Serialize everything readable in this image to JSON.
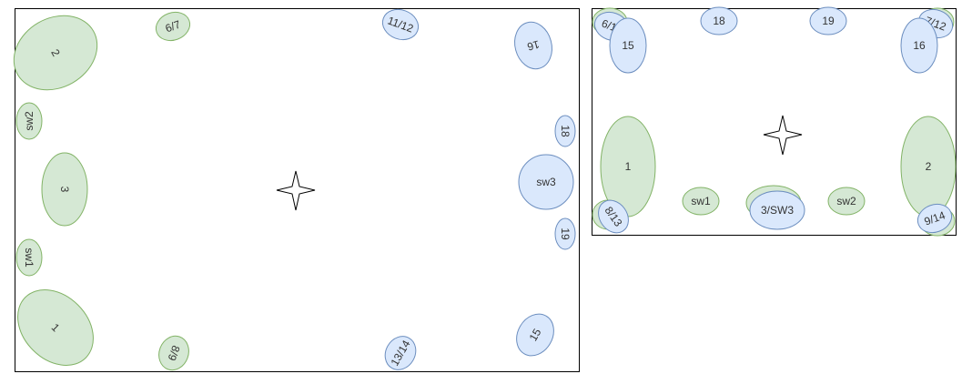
{
  "colors": {
    "green_fill": "#d5e8d4",
    "green_stroke": "#82b366",
    "blue_fill": "#dae8fc",
    "blue_stroke": "#6c8ebf",
    "frame_stroke": "#000000"
  },
  "diagram": {
    "left_panel": {
      "center_marker": "four-point-star-icon",
      "nodes": [
        {
          "label": "2",
          "color": "green"
        },
        {
          "label": "6/7",
          "color": "green"
        },
        {
          "label": "11/12",
          "color": "blue"
        },
        {
          "label": "16",
          "color": "blue"
        },
        {
          "label": "sw2",
          "color": "green"
        },
        {
          "label": "18",
          "color": "blue"
        },
        {
          "label": "3",
          "color": "green"
        },
        {
          "label": "sw3",
          "color": "blue"
        },
        {
          "label": "19",
          "color": "blue"
        },
        {
          "label": "sw1",
          "color": "green"
        },
        {
          "label": "1",
          "color": "green"
        },
        {
          "label": "8/9",
          "color": "green"
        },
        {
          "label": "13/14",
          "color": "blue"
        },
        {
          "label": "15",
          "color": "blue"
        }
      ]
    },
    "right_panel": {
      "center_marker": "four-point-star-icon",
      "nodes": [
        {
          "label": "6/11",
          "color": "blue"
        },
        {
          "label": "15",
          "color": "blue"
        },
        {
          "label": "18",
          "color": "blue"
        },
        {
          "label": "19",
          "color": "blue"
        },
        {
          "label": "7/12",
          "color": "blue"
        },
        {
          "label": "16",
          "color": "blue"
        },
        {
          "label": "1",
          "color": "green"
        },
        {
          "label": "2",
          "color": "green"
        },
        {
          "label": "sw1",
          "color": "green"
        },
        {
          "label": "3/SW3",
          "color": "blue"
        },
        {
          "label": "sw2",
          "color": "green"
        },
        {
          "label": "8/13",
          "color": "blue"
        },
        {
          "label": "9/14",
          "color": "blue"
        }
      ]
    }
  }
}
